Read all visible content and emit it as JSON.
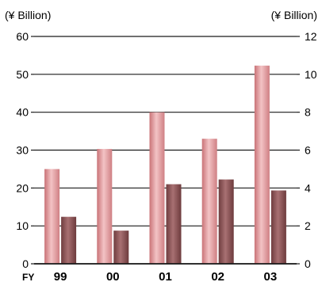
{
  "chart_data": {
    "type": "bar",
    "title": "",
    "x_prefix": "FY",
    "categories": [
      "99",
      "00",
      "01",
      "02",
      "03"
    ],
    "y_left": {
      "unit_label": "(¥ Billion)",
      "lim": [
        0,
        60
      ],
      "ticks": [
        0,
        10,
        20,
        30,
        40,
        50,
        60
      ]
    },
    "y_right": {
      "unit_label": "(¥ Billion)",
      "lim": [
        0,
        12
      ],
      "ticks": [
        0,
        2,
        4,
        6,
        8,
        10,
        12
      ]
    },
    "series": [
      {
        "axis": "left",
        "values": [
          25,
          30.3,
          40,
          33,
          52.3
        ]
      },
      {
        "axis": "right",
        "values": [
          2.48,
          1.75,
          4.2,
          4.45,
          3.87
        ]
      }
    ],
    "colors": {
      "series_left": "#d98c8f",
      "series_right": "#8e5556",
      "axis": "#1a1a1a"
    },
    "grid": true,
    "legend": "none"
  }
}
